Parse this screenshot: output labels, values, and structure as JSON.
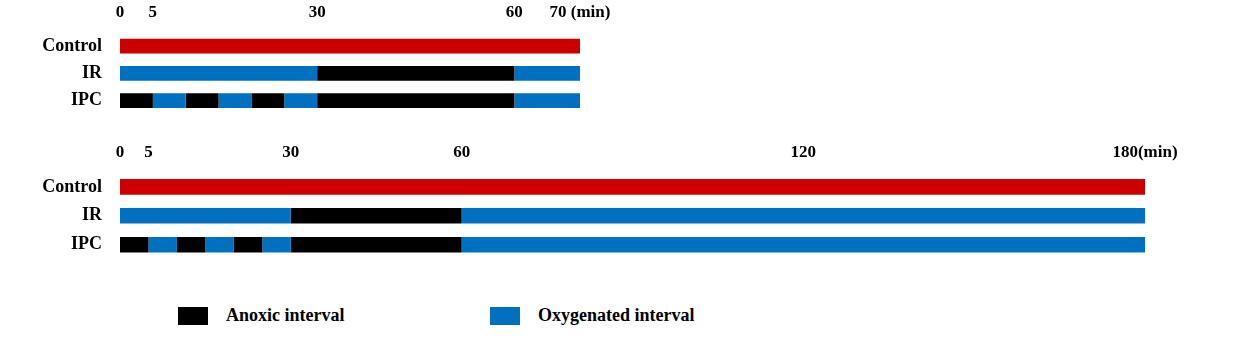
{
  "chart_data": [
    {
      "type": "bar",
      "orientation": "horizontal",
      "grid": false,
      "categories": [
        "Control",
        "IR",
        "IPC"
      ],
      "xlim": [
        0,
        70
      ],
      "xticks": [
        0,
        5,
        30,
        60,
        {
          "value": 70,
          "label": "70 (min)"
        }
      ],
      "segments": [
        {
          "category": "Control",
          "start": 0,
          "end": 70,
          "color": "#cc0000"
        },
        {
          "category": "IR",
          "start": 0,
          "end": 30,
          "color": "#0070c0"
        },
        {
          "category": "IR",
          "start": 30,
          "end": 60,
          "color": "#000000"
        },
        {
          "category": "IR",
          "start": 60,
          "end": 70,
          "color": "#0070c0"
        },
        {
          "category": "IPC",
          "start": 0,
          "end": 5,
          "color": "#000000"
        },
        {
          "category": "IPC",
          "start": 5,
          "end": 10,
          "color": "#0070c0"
        },
        {
          "category": "IPC",
          "start": 10,
          "end": 15,
          "color": "#000000"
        },
        {
          "category": "IPC",
          "start": 15,
          "end": 20,
          "color": "#0070c0"
        },
        {
          "category": "IPC",
          "start": 20,
          "end": 25,
          "color": "#000000"
        },
        {
          "category": "IPC",
          "start": 25,
          "end": 30,
          "color": "#0070c0"
        },
        {
          "category": "IPC",
          "start": 30,
          "end": 60,
          "color": "#000000"
        },
        {
          "category": "IPC",
          "start": 60,
          "end": 70,
          "color": "#0070c0"
        }
      ]
    },
    {
      "type": "bar",
      "orientation": "horizontal",
      "grid": false,
      "legend": "bottom",
      "categories": [
        "Control",
        "IR",
        "IPC"
      ],
      "xlim": [
        0,
        180
      ],
      "xticks": [
        0,
        5,
        30,
        60,
        120,
        {
          "value": 180,
          "label": "180(min)"
        }
      ],
      "segments": [
        {
          "category": "Control",
          "start": 0,
          "end": 180,
          "color": "#cc0000"
        },
        {
          "category": "IR",
          "start": 0,
          "end": 30,
          "color": "#0070c0"
        },
        {
          "category": "IR",
          "start": 30,
          "end": 60,
          "color": "#000000"
        },
        {
          "category": "IR",
          "start": 60,
          "end": 180,
          "color": "#0070c0"
        },
        {
          "category": "IPC",
          "start": 0,
          "end": 5,
          "color": "#000000"
        },
        {
          "category": "IPC",
          "start": 5,
          "end": 10,
          "color": "#0070c0"
        },
        {
          "category": "IPC",
          "start": 10,
          "end": 15,
          "color": "#000000"
        },
        {
          "category": "IPC",
          "start": 15,
          "end": 20,
          "color": "#0070c0"
        },
        {
          "category": "IPC",
          "start": 20,
          "end": 25,
          "color": "#000000"
        },
        {
          "category": "IPC",
          "start": 25,
          "end": 30,
          "color": "#0070c0"
        },
        {
          "category": "IPC",
          "start": 30,
          "end": 60,
          "color": "#000000"
        },
        {
          "category": "IPC",
          "start": 60,
          "end": 180,
          "color": "#0070c0"
        }
      ],
      "legend_items": [
        {
          "name": "Anoxic interval",
          "color": "#000000"
        },
        {
          "name": "Oxygenated interval",
          "color": "#0070c0"
        }
      ]
    }
  ]
}
